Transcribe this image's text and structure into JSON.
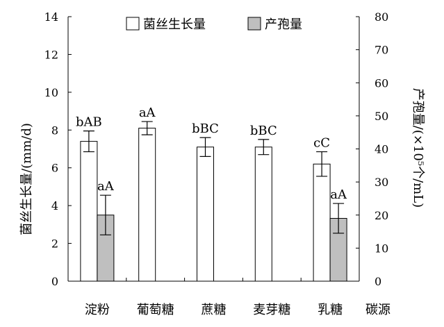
{
  "chart_data": {
    "type": "bar",
    "title": "",
    "xlabel": "碳源",
    "ylabel_left": "菌丝生长量/(mm/d)",
    "ylabel_right": "产孢量/(×10⁵个/mL)",
    "ylim_left": [
      0,
      14
    ],
    "ylim_right": [
      0,
      80
    ],
    "yticks_left": [
      "0",
      "2",
      "4",
      "6",
      "8",
      "10",
      "12",
      "14"
    ],
    "yticks_right": [
      "0",
      "10",
      "20",
      "30",
      "40",
      "50",
      "60",
      "70",
      "80"
    ],
    "categories": [
      "淀粉",
      "葡萄糖",
      "蔗糖",
      "麦芽糖",
      "乳糖"
    ],
    "legend_position": "top",
    "series": [
      {
        "name": "菌丝生长量",
        "axis": "left",
        "color": "#ffffff",
        "values": [
          7.4,
          8.1,
          7.1,
          7.1,
          6.2
        ],
        "errors": [
          0.55,
          0.35,
          0.5,
          0.4,
          0.65
        ],
        "labels": [
          "bAB",
          "aA",
          "bBC",
          "bBC",
          "cC"
        ]
      },
      {
        "name": "产孢量",
        "axis": "right",
        "color": "#bfbfbf",
        "values": [
          20,
          null,
          null,
          null,
          19
        ],
        "errors": [
          6,
          null,
          null,
          null,
          4.5
        ],
        "labels": [
          "aA",
          "",
          "",
          "",
          "aA"
        ]
      }
    ]
  }
}
